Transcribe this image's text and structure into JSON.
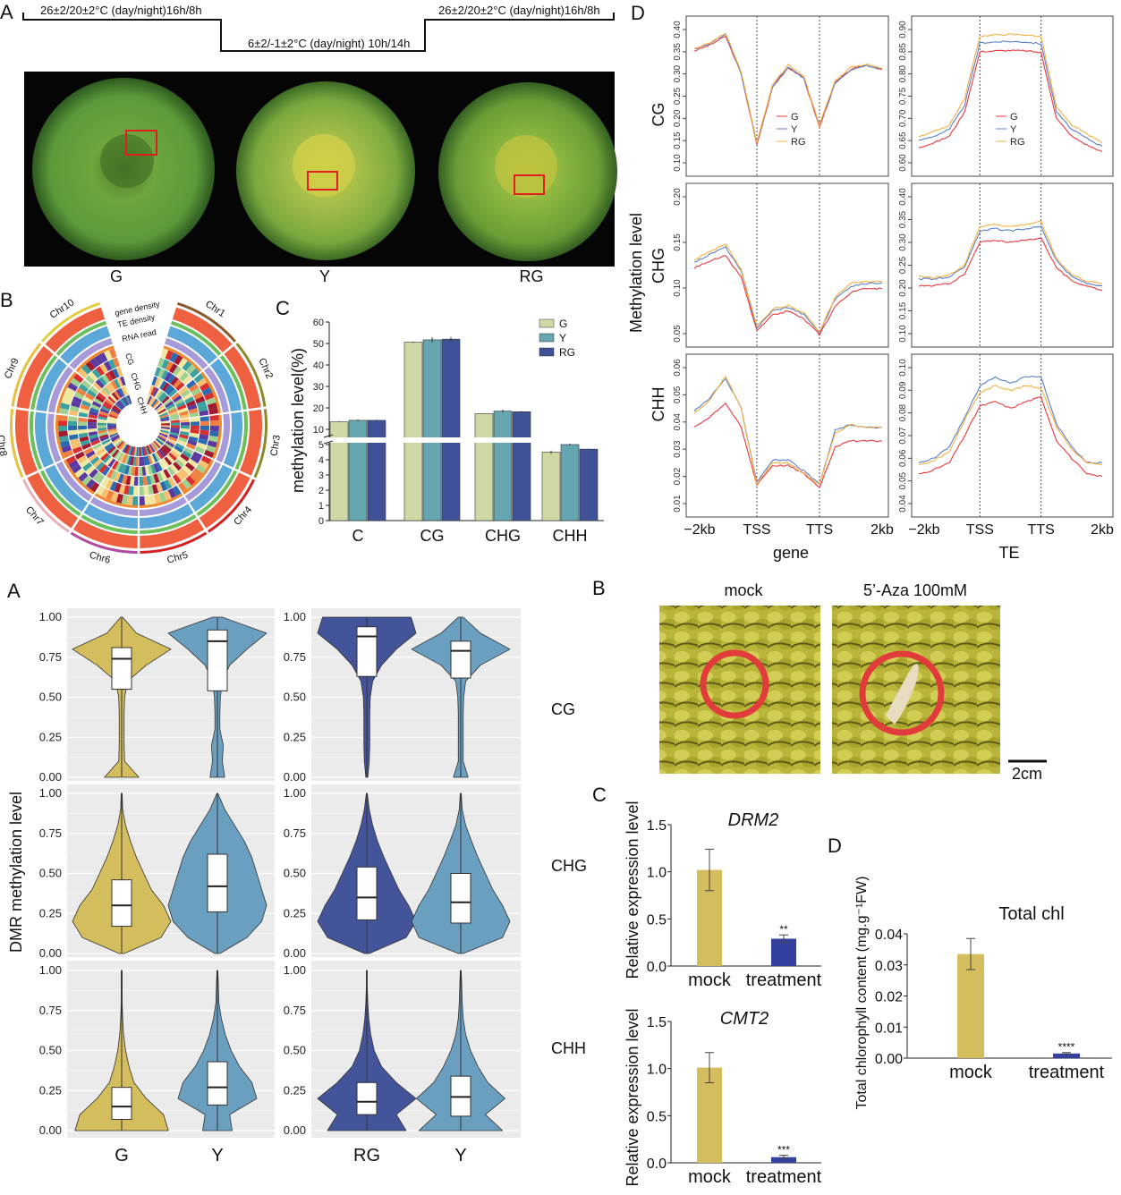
{
  "top": {
    "panel_A": {
      "label": "A",
      "condition_1": "26±2/20±2°C  (day/night)16h/8h",
      "condition_2": "6±2/-1±2°C (day/night) 10h/14h",
      "condition_3": "26±2/20±2°C  (day/night)16h/8h",
      "photo_labels": [
        "G",
        "Y",
        "RG"
      ]
    },
    "panel_B": {
      "label": "B",
      "chromosomes": [
        "Chr1",
        "Chr2",
        "Chr3",
        "Chr4",
        "Chr5",
        "Chr6",
        "Chr7",
        "Chr8",
        "Chr9",
        "Chr10"
      ],
      "track_labels": [
        "gene density",
        "TE density",
        "RNA read",
        "CG",
        "CHG",
        "CHH"
      ]
    },
    "panel_C": {
      "label": "C"
    },
    "panel_D": {
      "label": "D",
      "ylabel": "Methylation level",
      "row_labels": [
        "CG",
        "CHG",
        "CHH"
      ],
      "col_labels": [
        "gene",
        "TE"
      ]
    }
  },
  "bottom": {
    "panel_A": {
      "label": "A",
      "ylabel": "DMR methylation level",
      "row_labels": [
        "CG",
        "CHG",
        "CHH"
      ]
    },
    "panel_B": {
      "label": "B",
      "mock_label": "mock",
      "treatment_label": "5’-Aza 100mM",
      "scale_bar": "2cm"
    },
    "panel_C": {
      "label": "C"
    },
    "panel_D": {
      "label": "D"
    }
  },
  "colors": {
    "G": "#cfd9a6",
    "Y": "#65a6b0",
    "RG": "#3f5197",
    "line_G": "#e8383d",
    "line_Y": "#5b7fc6",
    "line_RG": "#f5b041",
    "violin_G": "#d4bd5c",
    "violin_Y": "#6a9fc0",
    "violin_RG": "#43549a",
    "bar_mock": "#d4bd5c",
    "bar_treatment": "#3440a0"
  },
  "chart_data": [
    {
      "id": "methylation_bar",
      "type": "bar",
      "categories": [
        "C",
        "CG",
        "CHG",
        "CHH"
      ],
      "ylabel": "methylation level(%)",
      "ylim": [
        0,
        60
      ],
      "axis_break": [
        5,
        10
      ],
      "yticks_lower": [
        "0",
        "1",
        "2",
        "3",
        "4",
        "5"
      ],
      "yticks_upper": [
        "10",
        "20",
        "30",
        "40",
        "50",
        "60"
      ],
      "legend": "top-right",
      "series": [
        {
          "name": "G",
          "values": [
            13.5,
            50.6,
            17.3,
            4.5
          ],
          "errors": [
            0.2,
            0.3,
            0.2,
            0.1
          ]
        },
        {
          "name": "Y",
          "values": [
            14.2,
            51.7,
            18.5,
            5.0
          ],
          "errors": [
            0.4,
            1.2,
            0.6,
            0.05
          ]
        },
        {
          "name": "RG",
          "values": [
            14.2,
            52.0,
            18.2,
            4.7
          ],
          "errors": [
            0.3,
            1.0,
            0.3,
            0.03
          ]
        }
      ]
    },
    {
      "id": "methylation_profiles",
      "type": "line",
      "xticks": [
        "−2kb",
        "TSS",
        "TTS",
        "2kb"
      ],
      "legend_entries": [
        "G",
        "Y",
        "RG"
      ],
      "panels": [
        {
          "feature": "gene",
          "context": "CG",
          "ylim": [
            0.1,
            0.4
          ],
          "yticks": [
            "0.10",
            "0.15",
            "0.20",
            "0.25",
            "0.30",
            "0.35",
            "0.40"
          ],
          "series": [
            {
              "name": "G",
              "values": [
                0.352,
                0.365,
                0.385,
                0.3,
                0.14,
                0.27,
                0.315,
                0.29,
                0.18,
                0.28,
                0.31,
                0.32,
                0.31
              ]
            },
            {
              "name": "Y",
              "values": [
                0.355,
                0.368,
                0.39,
                0.3,
                0.145,
                0.272,
                0.316,
                0.29,
                0.185,
                0.28,
                0.31,
                0.32,
                0.312
              ]
            },
            {
              "name": "RG",
              "values": [
                0.357,
                0.37,
                0.392,
                0.305,
                0.145,
                0.275,
                0.32,
                0.295,
                0.185,
                0.285,
                0.315,
                0.322,
                0.313
              ]
            }
          ]
        },
        {
          "feature": "TE",
          "context": "CG",
          "ylim": [
            0.6,
            0.9
          ],
          "yticks": [
            "0.60",
            "0.65",
            "0.70",
            "0.75",
            "0.80",
            "0.85",
            "0.90"
          ],
          "series": [
            {
              "name": "G",
              "values": [
                0.635,
                0.645,
                0.66,
                0.715,
                0.85,
                0.852,
                0.853,
                0.852,
                0.848,
                0.7,
                0.66,
                0.64,
                0.625
              ]
            },
            {
              "name": "Y",
              "values": [
                0.65,
                0.66,
                0.675,
                0.73,
                0.87,
                0.872,
                0.873,
                0.872,
                0.868,
                0.715,
                0.675,
                0.655,
                0.637
              ]
            },
            {
              "name": "RG",
              "values": [
                0.66,
                0.67,
                0.685,
                0.745,
                0.885,
                0.888,
                0.889,
                0.888,
                0.884,
                0.725,
                0.685,
                0.665,
                0.645
              ]
            }
          ]
        },
        {
          "feature": "gene",
          "context": "CHG",
          "ylim": [
            0.05,
            0.2
          ],
          "yticks": [
            "0.05",
            "0.10",
            "0.15",
            "0.20"
          ],
          "series": [
            {
              "name": "G",
              "values": [
                0.122,
                0.13,
                0.135,
                0.112,
                0.053,
                0.07,
                0.075,
                0.066,
                0.049,
                0.08,
                0.095,
                0.1,
                0.099
              ]
            },
            {
              "name": "Y",
              "values": [
                0.128,
                0.137,
                0.145,
                0.118,
                0.056,
                0.075,
                0.079,
                0.071,
                0.051,
                0.088,
                0.102,
                0.105,
                0.106
              ]
            },
            {
              "name": "RG",
              "values": [
                0.131,
                0.14,
                0.148,
                0.12,
                0.058,
                0.077,
                0.081,
                0.073,
                0.052,
                0.09,
                0.105,
                0.107,
                0.107
              ]
            }
          ]
        },
        {
          "feature": "TE",
          "context": "CHG",
          "ylim": [
            0.1,
            0.4
          ],
          "yticks": [
            "0.10",
            "0.15",
            "0.20",
            "0.25",
            "0.30",
            "0.35",
            "0.40"
          ],
          "series": [
            {
              "name": "G",
              "values": [
                0.205,
                0.205,
                0.21,
                0.23,
                0.3,
                0.305,
                0.3,
                0.305,
                0.31,
                0.245,
                0.215,
                0.205,
                0.195
              ]
            },
            {
              "name": "Y",
              "values": [
                0.22,
                0.22,
                0.225,
                0.245,
                0.325,
                0.33,
                0.325,
                0.33,
                0.335,
                0.26,
                0.225,
                0.21,
                0.205
              ]
            },
            {
              "name": "RG",
              "values": [
                0.225,
                0.222,
                0.228,
                0.25,
                0.335,
                0.34,
                0.335,
                0.34,
                0.345,
                0.265,
                0.23,
                0.215,
                0.21
              ]
            }
          ]
        },
        {
          "feature": "gene",
          "context": "CHH",
          "ylim": [
            0.01,
            0.06
          ],
          "yticks": [
            "0.01",
            "0.02",
            "0.03",
            "0.04",
            "0.05",
            "0.06"
          ],
          "series": [
            {
              "name": "G",
              "values": [
                0.038,
                0.042,
                0.047,
                0.038,
                0.017,
                0.024,
                0.024,
                0.021,
                0.016,
                0.031,
                0.033,
                0.033,
                0.033
              ]
            },
            {
              "name": "Y",
              "values": [
                0.044,
                0.049,
                0.056,
                0.045,
                0.018,
                0.026,
                0.026,
                0.022,
                0.017,
                0.037,
                0.039,
                0.038,
                0.038
              ]
            },
            {
              "name": "RG",
              "values": [
                0.043,
                0.048,
                0.057,
                0.045,
                0.017,
                0.025,
                0.025,
                0.021,
                0.017,
                0.036,
                0.039,
                0.038,
                0.038
              ]
            }
          ]
        },
        {
          "feature": "TE",
          "context": "CHH",
          "ylim": [
            0.04,
            0.1
          ],
          "yticks": [
            "0.04",
            "0.05",
            "0.06",
            "0.07",
            "0.08",
            "0.09",
            "0.10"
          ],
          "series": [
            {
              "name": "G",
              "values": [
                0.053,
                0.055,
                0.058,
                0.07,
                0.083,
                0.085,
                0.082,
                0.085,
                0.087,
                0.068,
                0.06,
                0.053,
                0.052
              ]
            },
            {
              "name": "Y",
              "values": [
                0.058,
                0.06,
                0.065,
                0.078,
                0.092,
                0.096,
                0.093,
                0.096,
                0.096,
                0.075,
                0.065,
                0.058,
                0.058
              ]
            },
            {
              "name": "RG",
              "values": [
                0.057,
                0.059,
                0.063,
                0.077,
                0.089,
                0.092,
                0.09,
                0.092,
                0.091,
                0.074,
                0.064,
                0.058,
                0.057
              ]
            }
          ]
        }
      ]
    },
    {
      "id": "dmr_violin",
      "type": "violin",
      "ylabel": "DMR methylation level",
      "ylim": [
        0,
        1
      ],
      "yticks": [
        "0.00",
        "0.25",
        "0.50",
        "0.75",
        "1.00"
      ],
      "groups": [
        [
          "G",
          "Y"
        ],
        [
          "RG",
          "Y"
        ]
      ],
      "density_levels": [
        0,
        0.1,
        0.2,
        0.3,
        0.4,
        0.5,
        0.6,
        0.7,
        0.8,
        0.9,
        1.0
      ],
      "rows": [
        {
          "context": "CG",
          "violins": [
            {
              "name": "G",
              "q1": 0.55,
              "median": 0.74,
              "q3": 0.81,
              "density": [
                0.35,
                0.06,
                0.05,
                0.05,
                0.05,
                0.06,
                0.12,
                0.5,
                1.0,
                0.3,
                0.02
              ]
            },
            {
              "name": "Y",
              "q1": 0.54,
              "median": 0.85,
              "q3": 0.92,
              "density": [
                0.15,
                0.1,
                0.12,
                0.05,
                0.05,
                0.06,
                0.1,
                0.25,
                0.6,
                1.0,
                0.1
              ]
            },
            {
              "name": "RG",
              "q1": 0.63,
              "median": 0.88,
              "q3": 0.94,
              "density": [
                0.02,
                0.05,
                0.06,
                0.06,
                0.06,
                0.07,
                0.12,
                0.3,
                0.6,
                1.0,
                0.9
              ]
            },
            {
              "name": "Y",
              "q1": 0.62,
              "median": 0.79,
              "q3": 0.85,
              "density": [
                0.15,
                0.05,
                0.05,
                0.05,
                0.05,
                0.06,
                0.1,
                0.4,
                1.0,
                0.4,
                0.05
              ]
            }
          ]
        },
        {
          "context": "CHG",
          "violins": [
            {
              "name": "G",
              "q1": 0.17,
              "median": 0.3,
              "q3": 0.46,
              "density": [
                0.05,
                0.8,
                1.0,
                0.85,
                0.6,
                0.45,
                0.3,
                0.18,
                0.08,
                0.02,
                0.01
              ]
            },
            {
              "name": "Y",
              "q1": 0.26,
              "median": 0.42,
              "q3": 0.62,
              "density": [
                0.05,
                0.6,
                0.9,
                1.0,
                0.9,
                0.8,
                0.7,
                0.55,
                0.35,
                0.15,
                0.01
              ]
            },
            {
              "name": "RG",
              "q1": 0.21,
              "median": 0.35,
              "q3": 0.54,
              "density": [
                0.05,
                0.8,
                1.0,
                0.85,
                0.65,
                0.5,
                0.35,
                0.22,
                0.12,
                0.05,
                0.01
              ]
            },
            {
              "name": "Y",
              "q1": 0.19,
              "median": 0.32,
              "q3": 0.5,
              "density": [
                0.05,
                0.85,
                1.0,
                0.85,
                0.65,
                0.5,
                0.35,
                0.22,
                0.1,
                0.03,
                0.01
              ]
            }
          ]
        },
        {
          "context": "CHH",
          "violins": [
            {
              "name": "G",
              "q1": 0.07,
              "median": 0.15,
              "q3": 0.27,
              "density": [
                0.95,
                0.85,
                0.5,
                0.25,
                0.15,
                0.08,
                0.04,
                0.02,
                0.01,
                0.01,
                0.01
              ]
            },
            {
              "name": "Y",
              "q1": 0.16,
              "median": 0.27,
              "q3": 0.43,
              "density": [
                0.3,
                0.25,
                0.8,
                0.7,
                0.45,
                0.28,
                0.16,
                0.08,
                0.03,
                0.02,
                0.01
              ]
            },
            {
              "name": "RG",
              "q1": 0.1,
              "median": 0.18,
              "q3": 0.3,
              "density": [
                0.8,
                0.6,
                1.0,
                0.6,
                0.3,
                0.15,
                0.08,
                0.04,
                0.02,
                0.01,
                0.01
              ]
            },
            {
              "name": "Y",
              "q1": 0.09,
              "median": 0.21,
              "q3": 0.34,
              "density": [
                0.85,
                0.5,
                0.9,
                0.55,
                0.35,
                0.2,
                0.1,
                0.05,
                0.03,
                0.02,
                0.01
              ]
            }
          ]
        }
      ]
    },
    {
      "id": "drm2_expression",
      "type": "bar",
      "title": "DRM2",
      "ylabel": "Relative expression level",
      "categories": [
        "mock",
        "treatment"
      ],
      "values": [
        1.02,
        0.29
      ],
      "errors": [
        0.22,
        0.04
      ],
      "significance": [
        "",
        "**"
      ],
      "ylim": [
        0,
        1.5
      ],
      "yticks": [
        "0.0",
        "0.5",
        "1.0",
        "1.5"
      ]
    },
    {
      "id": "cmt2_expression",
      "type": "bar",
      "title": "CMT2",
      "ylabel": "Relative expression level",
      "categories": [
        "mock",
        "treatment"
      ],
      "values": [
        1.01,
        0.06
      ],
      "errors": [
        0.16,
        0.02
      ],
      "significance": [
        "",
        "***"
      ],
      "ylim": [
        0,
        1.5
      ],
      "yticks": [
        "0.0",
        "0.5",
        "1.0",
        "1.5"
      ]
    },
    {
      "id": "chlorophyll",
      "type": "bar",
      "title": "Total chl",
      "ylabel": "Total chlorophyll content (mg.g⁻¹FW)",
      "categories": [
        "mock",
        "treatment"
      ],
      "values": [
        0.0335,
        0.0015
      ],
      "errors": [
        0.005,
        0.0003
      ],
      "significance": [
        "",
        "****"
      ],
      "ylim": [
        0,
        0.04
      ],
      "yticks": [
        "0.00",
        "0.01",
        "0.02",
        "0.03",
        "0.04"
      ]
    }
  ]
}
